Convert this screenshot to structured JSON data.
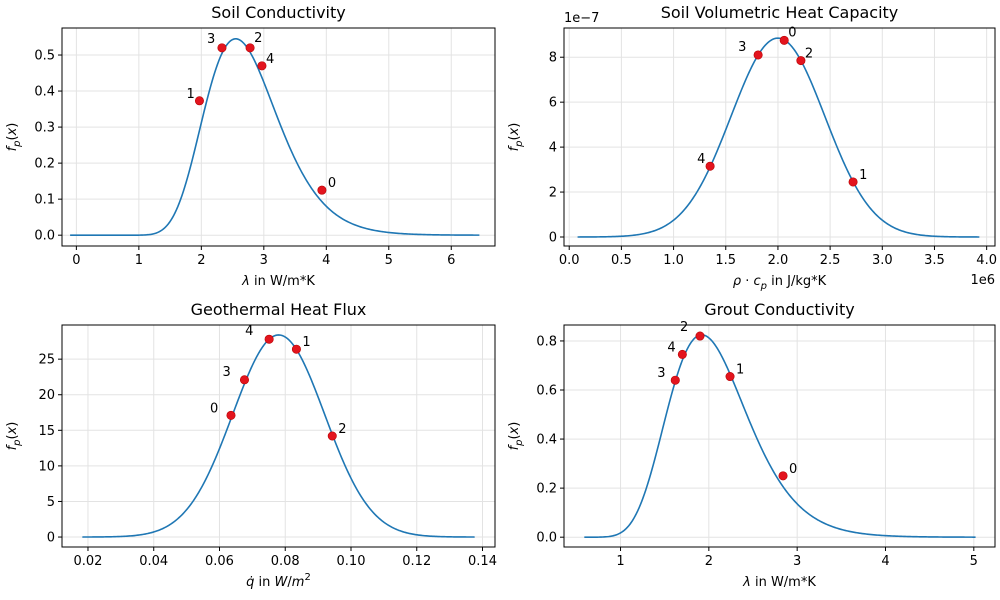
{
  "chart_data": [
    {
      "type": "line",
      "title": "Soil Conductivity",
      "xlabel": "λ in W/m*K",
      "ylabel": "f_p(x)",
      "xlim": [
        -0.23,
        6.7
      ],
      "ylim": [
        -0.03,
        0.575
      ],
      "xticks": [
        "0",
        "1",
        "2",
        "3",
        "4",
        "5",
        "6"
      ],
      "xtick_values": [
        0,
        1,
        2,
        3,
        4,
        5,
        6
      ],
      "yticks": [
        "0.0",
        "0.1",
        "0.2",
        "0.3",
        "0.4",
        "0.5"
      ],
      "ytick_values": [
        0,
        0.1,
        0.2,
        0.3,
        0.4,
        0.5
      ],
      "grid": true,
      "curve_range": [
        -0.1,
        6.45
      ],
      "curve_model": {
        "kind": "lognormal",
        "peak_x": 2.55,
        "peak_y": 0.545,
        "sigma": 0.23
      },
      "points": [
        {
          "label": "0",
          "x": 3.93,
          "y": 0.125
        },
        {
          "label": "1",
          "x": 1.97,
          "y": 0.373
        },
        {
          "label": "2",
          "x": 2.78,
          "y": 0.52
        },
        {
          "label": "3",
          "x": 2.33,
          "y": 0.52
        },
        {
          "label": "4",
          "x": 2.97,
          "y": 0.47
        }
      ]
    },
    {
      "type": "line",
      "title": "Soil Volumetric Heat Capacity",
      "xlabel": "ρ · c_p in J/kg*K",
      "ylabel": "f_p(x)",
      "x_multiplier": "1e6",
      "y_multiplier": "1e−7",
      "xlim": [
        -0.05,
        4.08
      ],
      "ylim": [
        -0.4,
        9.3
      ],
      "xticks": [
        "0.0",
        "0.5",
        "1.0",
        "1.5",
        "2.0",
        "2.5",
        "3.0",
        "3.5",
        "4.0"
      ],
      "xtick_values": [
        0,
        0.5,
        1,
        1.5,
        2,
        2.5,
        3,
        3.5,
        4
      ],
      "yticks": [
        "0",
        "2",
        "4",
        "6",
        "8"
      ],
      "ytick_values": [
        0,
        2,
        4,
        6,
        8
      ],
      "grid": true,
      "curve_range": [
        0.08,
        3.93
      ],
      "curve_model": {
        "kind": "normal",
        "peak_x": 2.0,
        "peak_y": 8.85,
        "sigma": 0.45
      },
      "points": [
        {
          "label": "0",
          "x": 2.06,
          "y": 8.75
        },
        {
          "label": "1",
          "x": 2.72,
          "y": 2.45
        },
        {
          "label": "2",
          "x": 2.22,
          "y": 7.85
        },
        {
          "label": "3",
          "x": 1.81,
          "y": 8.1
        },
        {
          "label": "4",
          "x": 1.35,
          "y": 3.15
        }
      ]
    },
    {
      "type": "line",
      "title": "Geothermal Heat Flux",
      "xlabel": "q̇ in W/m²",
      "ylabel": "f_p(x)",
      "xlim": [
        0.0121,
        0.1438
      ],
      "ylim": [
        -1.4,
        29.8
      ],
      "xticks": [
        "0.02",
        "0.04",
        "0.06",
        "0.08",
        "0.10",
        "0.12",
        "0.14"
      ],
      "xtick_values": [
        0.02,
        0.04,
        0.06,
        0.08,
        0.1,
        0.12,
        0.14
      ],
      "yticks": [
        "0",
        "5",
        "10",
        "15",
        "20",
        "25"
      ],
      "ytick_values": [
        0,
        5,
        10,
        15,
        20,
        25
      ],
      "grid": true,
      "curve_range": [
        0.0183,
        0.1376
      ],
      "curve_model": {
        "kind": "normal",
        "peak_x": 0.078,
        "peak_y": 28.4,
        "sigma": 0.014
      },
      "points": [
        {
          "label": "0",
          "x": 0.0635,
          "y": 17.1
        },
        {
          "label": "1",
          "x": 0.0834,
          "y": 26.4
        },
        {
          "label": "2",
          "x": 0.0943,
          "y": 14.2
        },
        {
          "label": "3",
          "x": 0.0676,
          "y": 22.1
        },
        {
          "label": "4",
          "x": 0.0751,
          "y": 27.8
        }
      ]
    },
    {
      "type": "line",
      "title": "Grout Conductivity",
      "xlabel": "λ in W/m*K",
      "ylabel": "f_p(x)",
      "xlim": [
        0.36,
        5.24
      ],
      "ylim": [
        -0.04,
        0.865
      ],
      "xticks": [
        "1",
        "2",
        "3",
        "4",
        "5"
      ],
      "xtick_values": [
        1,
        2,
        3,
        4,
        5
      ],
      "yticks": [
        "0.0",
        "0.2",
        "0.4",
        "0.6",
        "0.8"
      ],
      "ytick_values": [
        0,
        0.2,
        0.4,
        0.6,
        0.8
      ],
      "grid": true,
      "curve_range": [
        0.59,
        5.02
      ],
      "curve_model": {
        "kind": "lognormal",
        "peak_x": 1.92,
        "peak_y": 0.825,
        "sigma": 0.235
      },
      "points": [
        {
          "label": "0",
          "x": 2.84,
          "y": 0.25
        },
        {
          "label": "1",
          "x": 2.24,
          "y": 0.655
        },
        {
          "label": "2",
          "x": 1.9,
          "y": 0.82
        },
        {
          "label": "3",
          "x": 1.62,
          "y": 0.64
        },
        {
          "label": "4",
          "x": 1.7,
          "y": 0.745
        }
      ]
    }
  ]
}
